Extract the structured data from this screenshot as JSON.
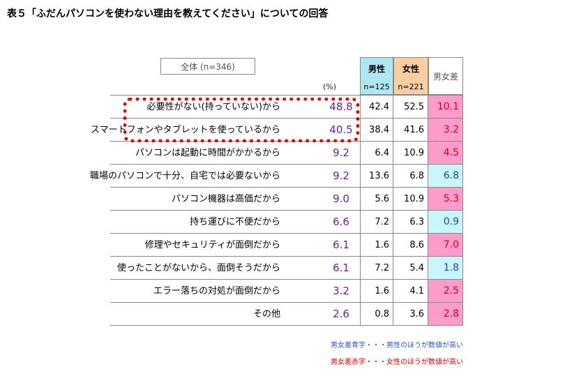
{
  "title": "表５「ふだんパソコンを使わない理由を教えてください」についての回答",
  "overall_label": "全体 (n=346)",
  "pct_label": "(%)",
  "headers": {
    "male": {
      "label": "男性",
      "n": "n=125"
    },
    "female": {
      "label": "女性",
      "n": "n=221"
    },
    "diff": {
      "label": "男女差"
    }
  },
  "rows": [
    {
      "reason": "必要性がない(持っていない)から",
      "total": "48.8",
      "male": "42.4",
      "female": "52.5",
      "diff": "10.1",
      "diff_color": "red"
    },
    {
      "reason": "スマートフォンやタブレットを使っているから",
      "total": "40.5",
      "male": "38.4",
      "female": "41.6",
      "diff": "3.2",
      "diff_color": "red"
    },
    {
      "reason": "パソコンは起動に時間がかかるから",
      "total": "9.2",
      "male": "6.4",
      "female": "10.9",
      "diff": "4.5",
      "diff_color": "red"
    },
    {
      "reason": "職場のパソコンで十分、自宅では必要ないから",
      "total": "9.2",
      "male": "13.6",
      "female": "6.8",
      "diff": "6.8",
      "diff_color": "blue"
    },
    {
      "reason": "パソコン機器は高価だから",
      "total": "9.0",
      "male": "5.6",
      "female": "10.9",
      "diff": "5.3",
      "diff_color": "red"
    },
    {
      "reason": "持ち運びに不便だから",
      "total": "6.6",
      "male": "7.2",
      "female": "6.3",
      "diff": "0.9",
      "diff_color": "blue"
    },
    {
      "reason": "修理やセキュリティが面倒だから",
      "total": "6.1",
      "male": "1.6",
      "female": "8.6",
      "diff": "7.0",
      "diff_color": "red"
    },
    {
      "reason": "使ったことがないから、面倒そうだから",
      "total": "6.1",
      "male": "7.2",
      "female": "5.4",
      "diff": "1.8",
      "diff_color": "blue"
    },
    {
      "reason": "エラー落ちの対処が面倒だから",
      "total": "3.2",
      "male": "1.6",
      "female": "4.1",
      "diff": "2.5",
      "diff_color": "red"
    },
    {
      "reason": "その他",
      "total": "2.6",
      "male": "0.8",
      "female": "3.6",
      "diff": "2.8",
      "diff_color": "red"
    }
  ],
  "notes": {
    "blue": "男女差青字・・・男性のほうが数値が高い",
    "red": "男女差赤字・・・女性のほうが数値が高い"
  },
  "colors": {
    "male_header": "#aee6f4",
    "female_header": "#f9cfa0",
    "diff_red_bg": "#ff9ccb",
    "diff_blue_bg": "#c8f6f9",
    "total_text": "#6a1fa0",
    "highlight": "#e00000"
  }
}
